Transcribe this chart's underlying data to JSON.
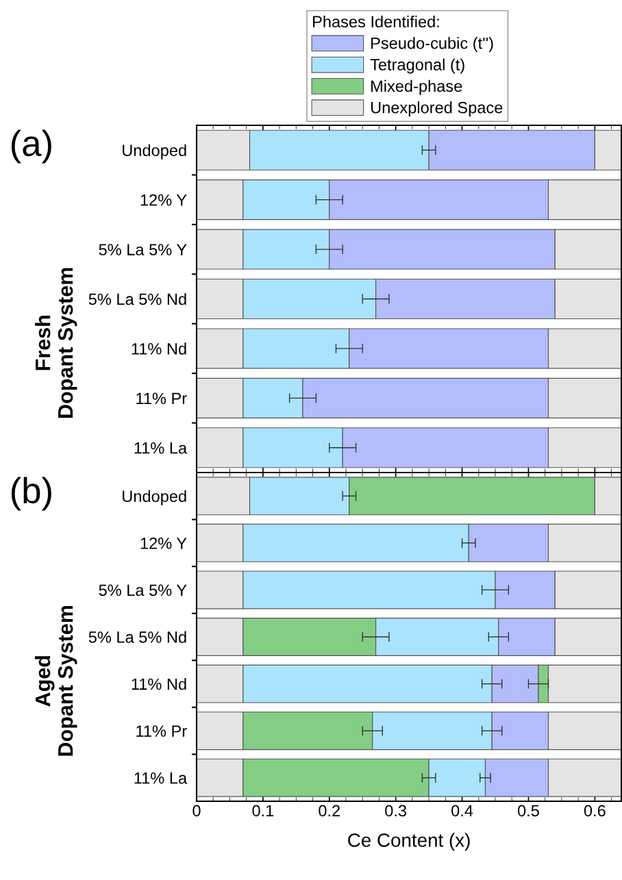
{
  "chart_data": [
    {
      "type": "bar",
      "orientation": "horizontal",
      "stacked": true,
      "title": "(a)",
      "ylabel": "Fresh\nDopant System",
      "tick_labels": "y",
      "grid": false,
      "categories": [
        "Undoped",
        "12% Y",
        "5% La 5% Y",
        "5% La 5% Nd",
        "11% Nd",
        "11% Pr",
        "11% La"
      ],
      "xlim": [
        0,
        0.64
      ],
      "xticks": [
        0,
        0.1,
        0.2,
        0.3,
        0.4,
        0.5,
        0.6
      ],
      "series": [
        {
          "color": "#e4e4e4",
          "values": [
            0.08,
            0.07,
            0.07,
            0.07,
            0.07,
            0.07,
            0.07
          ]
        },
        {
          "color": "#aae3fd",
          "values": [
            0.27,
            0.13,
            0.13,
            0.2,
            0.16,
            0.09,
            0.15
          ],
          "errors": [
            0.01,
            0.02,
            0.02,
            0.02,
            0.02,
            0.02,
            0.02
          ]
        },
        {
          "color": "#b3bcfc",
          "values": [
            0.25,
            0.33,
            0.34,
            0.27,
            0.3,
            0.37,
            0.31
          ]
        },
        {
          "color": "#e4e4e4",
          "values": [
            0.04,
            0.11,
            0.1,
            0.1,
            0.11,
            0.11,
            0.11
          ]
        }
      ]
    },
    {
      "type": "bar",
      "orientation": "horizontal",
      "stacked": true,
      "title": "(b)",
      "ylabel": "Aged\nDopant System",
      "xlabel": "Ce Content (x)",
      "legend": "top",
      "legend_title": "Phases Identified:",
      "grid": false,
      "categories": [
        "Undoped",
        "12% Y",
        "5% La 5% Y",
        "5% La 5% Nd",
        "11% Nd",
        "11% Pr",
        "11% La"
      ],
      "xlim": [
        0,
        0.64
      ],
      "xticks": [
        0,
        0.1,
        0.2,
        0.3,
        0.4,
        0.5,
        0.6
      ],
      "series": [
        {
          "name": "Unexplored Space",
          "color": "#e4e4e4",
          "values": [
            0.08,
            0.07,
            0.07,
            0.07,
            0.07,
            0.07,
            0.07
          ]
        },
        {
          "name": "Mixed-phase",
          "color": "#84cd85",
          "values": [
            null,
            null,
            null,
            0.2,
            null,
            0.195,
            0.28
          ],
          "errors": [
            null,
            null,
            null,
            0.02,
            null,
            0.015,
            0.01
          ]
        },
        {
          "name": "Tetragonal (t)",
          "color": "#aae3fd",
          "values": [
            0.15,
            0.34,
            0.38,
            0.185,
            0.375,
            0.18,
            0.085
          ],
          "errors": [
            0.01,
            0.01,
            0.02,
            0.015,
            0.015,
            0.015,
            0.008
          ]
        },
        {
          "name": "Pseudo-cubic (t'')",
          "color": "#b3bcfc",
          "values": [
            null,
            0.12,
            0.09,
            0.085,
            0.07,
            0.085,
            0.095
          ],
          "errors": [
            null,
            null,
            null,
            null,
            0.015,
            null,
            null
          ]
        },
        {
          "color": "#84cd85",
          "values": [
            0.37,
            null,
            null,
            null,
            0.015,
            null,
            null
          ]
        },
        {
          "color": "#e4e4e4",
          "values": [
            0.04,
            0.11,
            0.1,
            0.1,
            0.11,
            0.11,
            0.11
          ]
        }
      ]
    }
  ]
}
